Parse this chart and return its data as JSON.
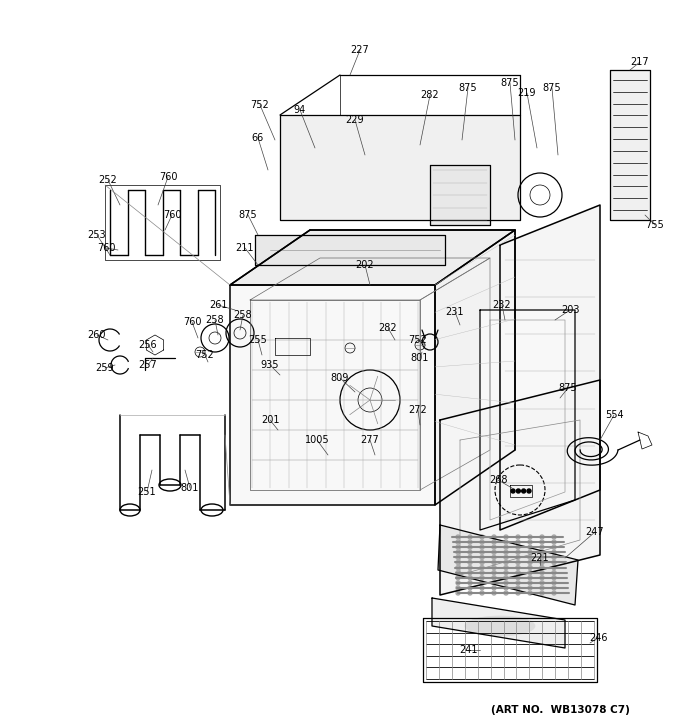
{
  "art_no": "(ART NO.  WB13078 C7)",
  "background": "#ffffff",
  "fig_w": 6.8,
  "fig_h": 7.25,
  "dpi": 100
}
